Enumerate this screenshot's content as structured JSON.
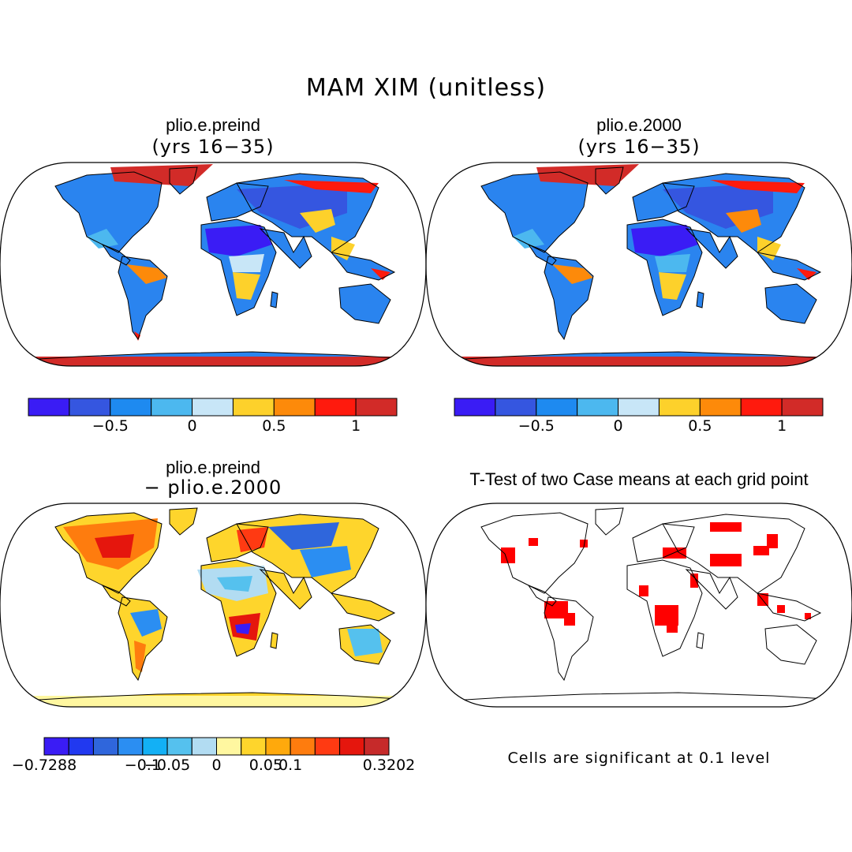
{
  "figure": {
    "title": "MAM XIM (unitless)"
  },
  "panels": [
    {
      "id": "top-left",
      "title": "plio.e.preind",
      "subtitle": "(yrs 16−35)",
      "type": "filled-map"
    },
    {
      "id": "top-right",
      "title": "plio.e.2000",
      "subtitle": "(yrs 16−35)",
      "type": "filled-map"
    },
    {
      "id": "bottom-left",
      "title": "plio.e.preind",
      "subtitle": "− plio.e.2000",
      "type": "difference-map"
    },
    {
      "id": "bottom-right",
      "title": "T-Test of two Case means at each grid point",
      "note": "Cells are significant at 0.1 level",
      "type": "significance-map",
      "significant_color": "#ff0000"
    }
  ],
  "colorbars": {
    "absolute": {
      "colors": [
        "#3a1cf5",
        "#3556e0",
        "#1e8af0",
        "#4cb8ef",
        "#c8e6f7",
        "#fdd12b",
        "#fd8a0a",
        "#ff1a0d",
        "#d22b28"
      ],
      "tick_labels": [
        "−0.5",
        "0",
        "0.5",
        "1"
      ],
      "tick_values": [
        -0.5,
        0,
        0.5,
        1
      ],
      "range": [
        -1.0,
        1.25
      ]
    },
    "difference": {
      "colors": [
        "#3a1cf5",
        "#2139f0",
        "#2f66dc",
        "#2b8ef2",
        "#13b0f5",
        "#55c1ee",
        "#b2dcf2",
        "#fff7a0",
        "#fed52c",
        "#ffa90c",
        "#fe7c0e",
        "#ff3a12",
        "#e5160d",
        "#c62a2a"
      ],
      "tick_labels": [
        "−0.7288",
        "−0.1",
        "−0.05",
        "0",
        "0.05",
        "0.1",
        "0.3202"
      ],
      "tick_positions": [
        0,
        4,
        5,
        7,
        9,
        10,
        14
      ]
    }
  }
}
